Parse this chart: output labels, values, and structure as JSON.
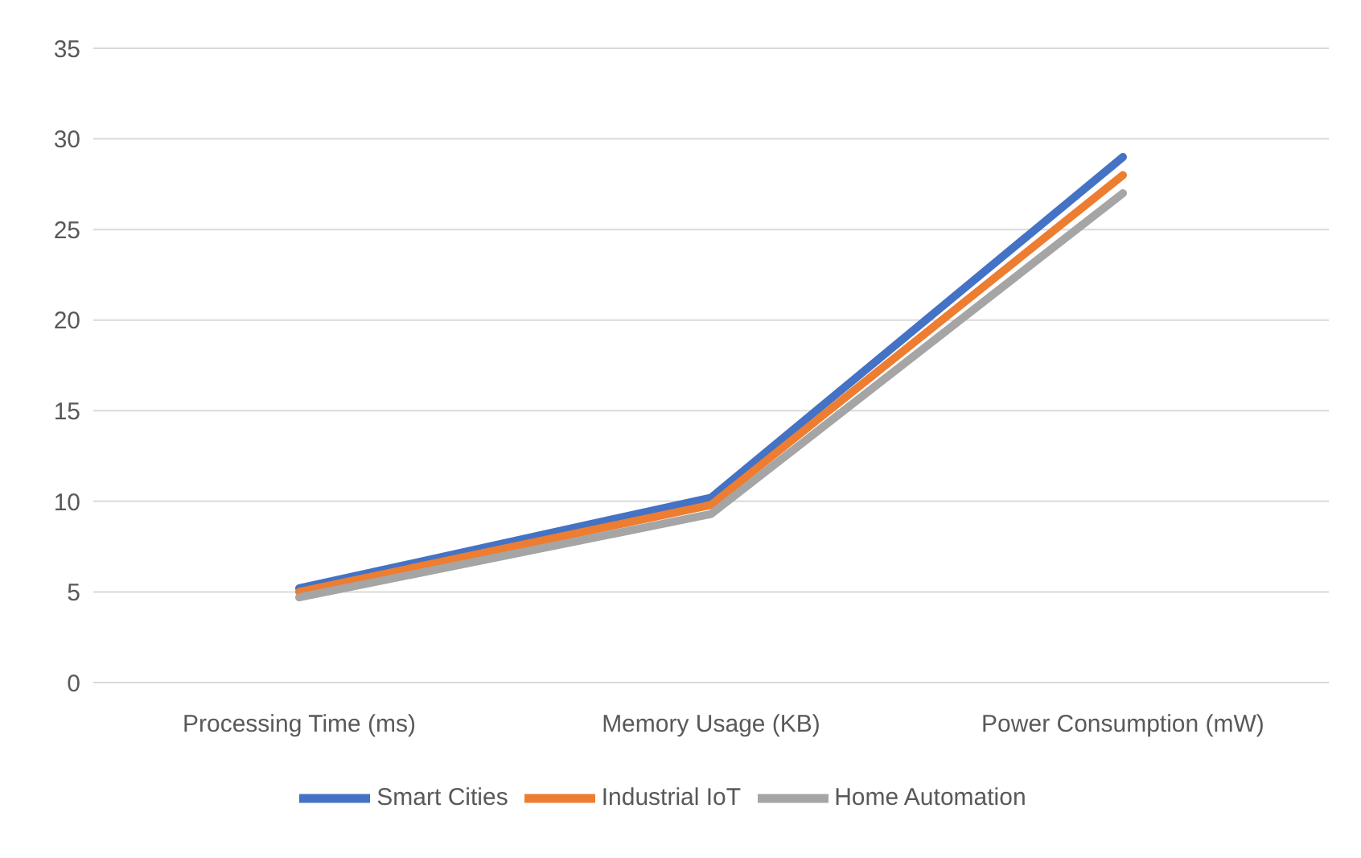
{
  "chart_data": {
    "type": "line",
    "categories": [
      "Processing Time (ms)",
      "Memory Usage (KB)",
      "Power Consumption (mW)"
    ],
    "series": [
      {
        "name": "Smart Cities",
        "color": "#4472c4",
        "values": [
          5.2,
          10.2,
          29
        ]
      },
      {
        "name": "Industrial IoT",
        "color": "#ed7d31",
        "values": [
          5.0,
          9.8,
          28
        ]
      },
      {
        "name": "Home Automation",
        "color": "#a5a5a5",
        "values": [
          4.7,
          9.3,
          27
        ]
      }
    ],
    "ylim": [
      0,
      35
    ],
    "yticks": [
      0,
      5,
      10,
      15,
      20,
      25,
      30,
      35
    ],
    "grid": "y",
    "legend": "bottom",
    "marker": "none",
    "line_style": "solid"
  }
}
